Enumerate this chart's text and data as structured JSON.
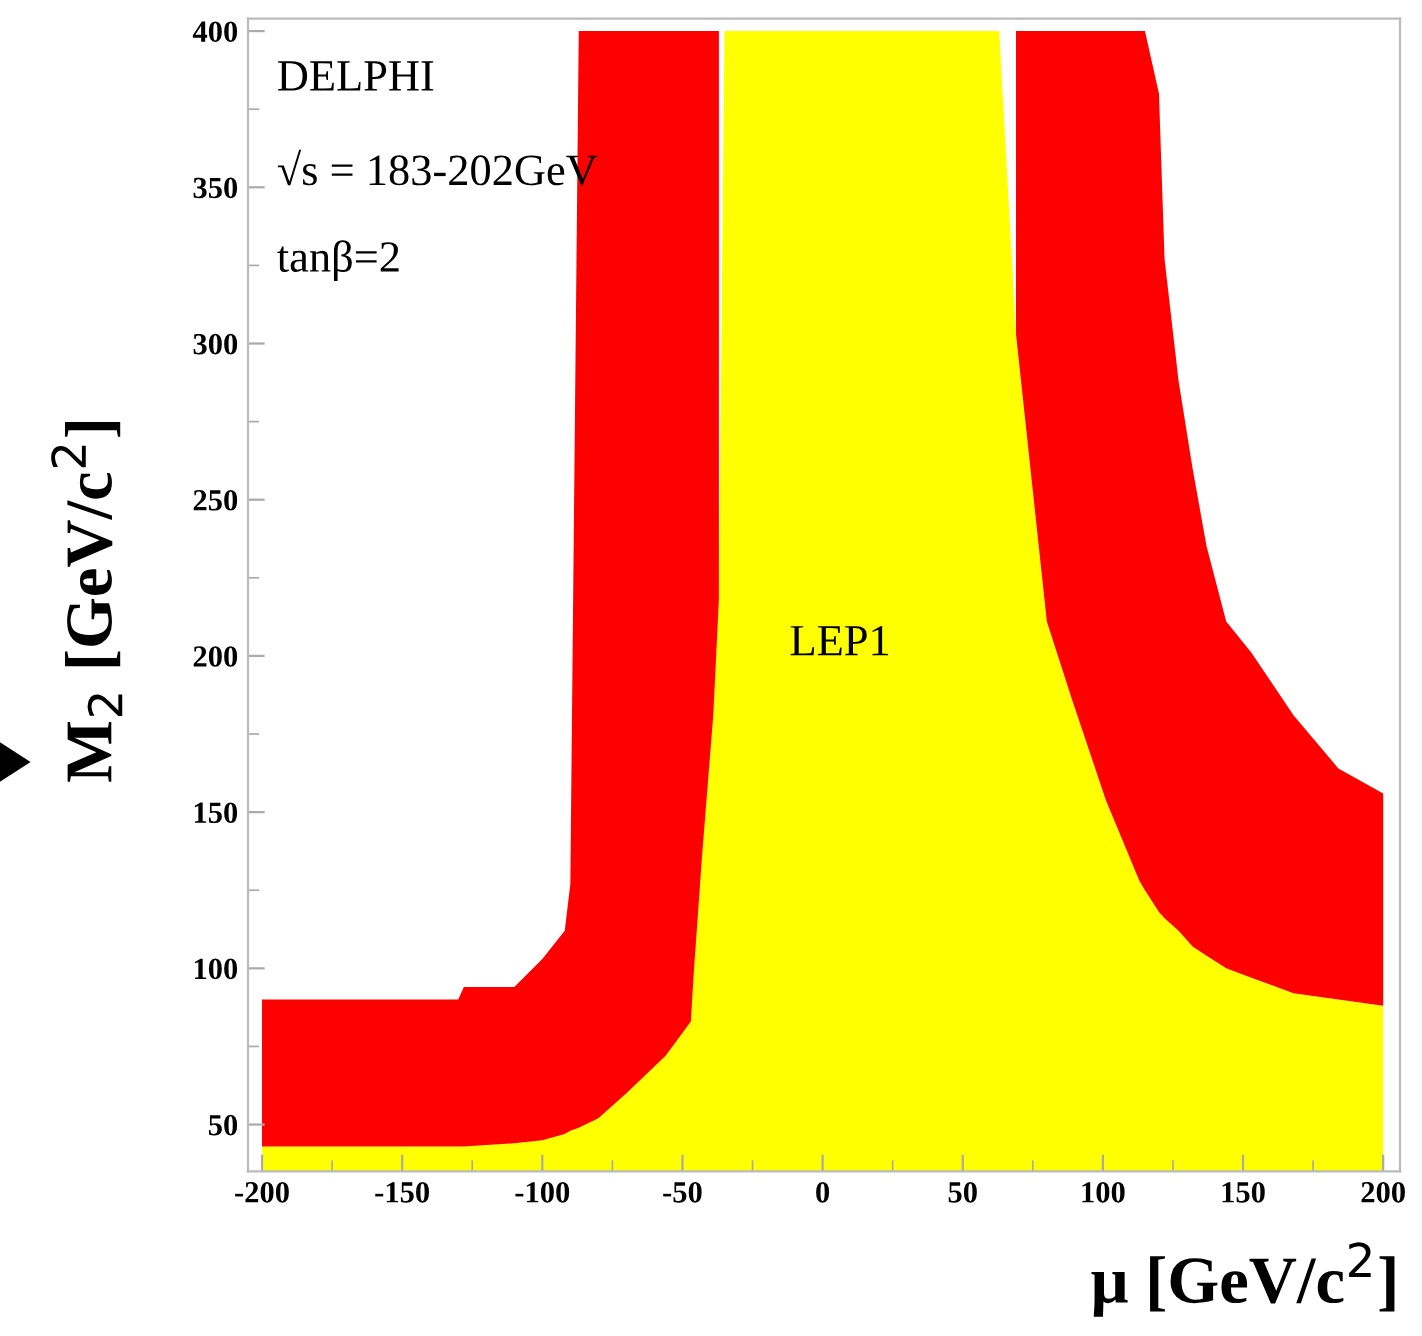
{
  "chart_data": {
    "type": "area",
    "stacked": true,
    "xlabel": "μ [GeV/c$^{2}$]",
    "ylabel": "M$_{2}$ [GeV/c$^{2}$]",
    "annotations": [
      "DELPHI",
      "√s = 183-202GeV",
      "tanβ=2",
      "LEP1"
    ],
    "x": [
      -200,
      -130,
      -128,
      -110,
      -100,
      -92,
      -90,
      -87,
      -80,
      -70,
      -56,
      -47,
      -46,
      -43,
      -39,
      -37,
      -35,
      63,
      69,
      80,
      89,
      101,
      113,
      115,
      120,
      122,
      127,
      132,
      137,
      144,
      153,
      168,
      184,
      200
    ],
    "series": [
      {
        "color": "#ffff00",
        "values": [
          43,
          43,
          43,
          44,
          45,
          47,
          48,
          49,
          52,
          60,
          72,
          83,
          98,
          136,
          181,
          218,
          400,
          400,
          303,
          211,
          186,
          154,
          128,
          125,
          118,
          116,
          112,
          107,
          104,
          100,
          97,
          92,
          90,
          88
        ]
      },
      {
        "color": "#ff0000",
        "values": [
          47,
          47,
          51,
          50,
          58,
          65,
          79,
          351,
          348,
          340,
          328,
          317,
          302,
          264,
          219,
          182,
          null,
          null,
          97,
          189,
          214,
          246,
          272,
          275,
          262,
          211,
          176,
          153,
          131,
          111,
          104,
          89,
          74,
          68
        ]
      }
    ],
    "xlim": [
      -205,
      206
    ],
    "ylim": [
      35,
      404
    ],
    "xticks": [
      -200,
      {
        "value": -175,
        "label": null
      },
      -150,
      {
        "value": -125,
        "label": null
      },
      -100,
      {
        "value": -75,
        "label": null
      },
      -50,
      {
        "value": -25,
        "label": null
      },
      0,
      {
        "value": 25,
        "label": null
      },
      50,
      {
        "value": 75,
        "label": null
      },
      100,
      {
        "value": 125,
        "label": null
      },
      150,
      {
        "value": 175,
        "label": null
      },
      200
    ],
    "yticks": [
      50,
      {
        "value": 75,
        "label": null
      },
      100,
      {
        "value": 125,
        "label": null
      },
      150,
      {
        "value": 175,
        "label": null
      },
      200,
      {
        "value": 225,
        "label": null
      },
      250,
      {
        "value": 275,
        "label": null
      },
      300,
      {
        "value": 325,
        "label": null
      },
      350,
      {
        "value": 375,
        "label": null
      },
      400
    ],
    "grid": false,
    "legend": false
  }
}
